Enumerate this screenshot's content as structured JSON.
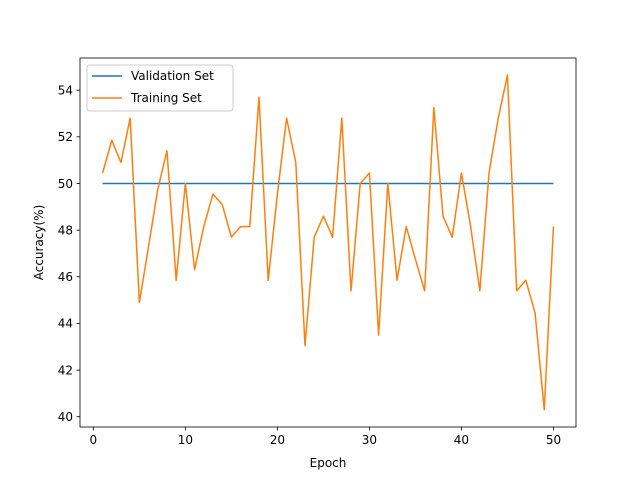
{
  "chart_data": {
    "type": "line",
    "xlabel": "Epoch",
    "ylabel": "Accuracy(%)",
    "xlim": [
      -1.45,
      52.45
    ],
    "ylim": [
      39.56,
      55.38
    ],
    "xticks": [
      0,
      10,
      20,
      30,
      40,
      50
    ],
    "yticks": [
      40,
      42,
      44,
      46,
      48,
      50,
      52,
      54
    ],
    "grid": false,
    "legend": "top-left",
    "x": [
      1,
      2,
      3,
      4,
      5,
      6,
      7,
      8,
      9,
      10,
      11,
      12,
      13,
      14,
      15,
      16,
      17,
      18,
      19,
      20,
      21,
      22,
      23,
      24,
      25,
      26,
      27,
      28,
      29,
      30,
      31,
      32,
      33,
      34,
      35,
      36,
      37,
      38,
      39,
      40,
      41,
      42,
      43,
      44,
      45,
      46,
      47,
      48,
      49,
      50
    ],
    "series": [
      {
        "name": "Validation Set",
        "color": "#1f77b4",
        "values": [
          50,
          50,
          50,
          50,
          50,
          50,
          50,
          50,
          50,
          50,
          50,
          50,
          50,
          50,
          50,
          50,
          50,
          50,
          50,
          50,
          50,
          50,
          50,
          50,
          50,
          50,
          50,
          50,
          50,
          50,
          50,
          50,
          50,
          50,
          50,
          50,
          50,
          50,
          50,
          50,
          50,
          50,
          50,
          50,
          50,
          50,
          50,
          50,
          50,
          50
        ]
      },
      {
        "name": "Training Set",
        "color": "#ff7f0e",
        "values": [
          50.45,
          51.85,
          50.9,
          52.8,
          44.9,
          47.3,
          49.75,
          51.4,
          45.85,
          50.0,
          46.3,
          48.15,
          49.55,
          49.1,
          47.7,
          48.15,
          48.15,
          53.7,
          45.85,
          49.55,
          52.8,
          50.9,
          43.05,
          47.7,
          48.6,
          47.7,
          52.8,
          45.4,
          50.0,
          50.45,
          43.5,
          50.0,
          45.85,
          48.15,
          46.75,
          45.4,
          53.25,
          48.6,
          47.7,
          50.45,
          48.15,
          45.4,
          50.45,
          52.8,
          54.65,
          45.4,
          45.85,
          44.45,
          40.3,
          48.15
        ]
      }
    ]
  }
}
